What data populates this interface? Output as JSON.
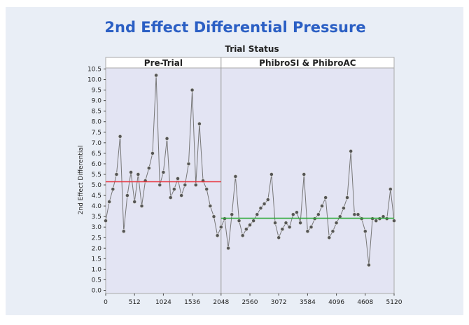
{
  "chart_data": {
    "type": "line",
    "title": "2nd Effect Differential Pressure",
    "group_title": "Trial Status",
    "y_label": "2nd Effect Differential",
    "phases": [
      {
        "name": "Pre-Trial",
        "start": 0,
        "end": 2048,
        "mean": 5.15,
        "color": "#e8323c"
      },
      {
        "name": "PhibroSI & PhibroAC",
        "start": 2048,
        "end": 5120,
        "mean": 3.42,
        "color": "#2eaa3a"
      }
    ],
    "x": [
      0,
      64,
      128,
      192,
      256,
      320,
      384,
      448,
      512,
      576,
      640,
      704,
      768,
      832,
      896,
      960,
      1024,
      1088,
      1152,
      1216,
      1280,
      1344,
      1408,
      1472,
      1536,
      1600,
      1664,
      1728,
      1792,
      1856,
      1920,
      1984,
      2048,
      2112,
      2176,
      2240,
      2304,
      2368,
      2432,
      2496,
      2560,
      2624,
      2688,
      2752,
      2816,
      2880,
      2944,
      3008,
      3072,
      3136,
      3200,
      3264,
      3328,
      3392,
      3456,
      3520,
      3584,
      3648,
      3712,
      3776,
      3840,
      3904,
      3968,
      4032,
      4096,
      4160,
      4224,
      4288,
      4352,
      4416,
      4480,
      4544,
      4608,
      4672,
      4736,
      4800,
      4864,
      4928,
      4992,
      5056,
      5120
    ],
    "values": [
      3.3,
      4.2,
      4.8,
      5.5,
      7.3,
      2.8,
      4.5,
      5.6,
      4.2,
      5.5,
      4.0,
      5.2,
      5.8,
      6.5,
      10.2,
      5.0,
      5.6,
      7.2,
      4.4,
      4.8,
      5.3,
      4.5,
      5.0,
      6.0,
      9.5,
      5.0,
      7.9,
      5.2,
      4.8,
      4.0,
      3.5,
      2.6,
      3.0,
      3.4,
      2.0,
      3.6,
      5.4,
      3.3,
      2.6,
      2.9,
      3.1,
      3.3,
      3.6,
      3.9,
      4.1,
      4.3,
      5.5,
      3.2,
      2.5,
      2.9,
      3.2,
      3.0,
      3.6,
      3.7,
      3.2,
      5.5,
      2.8,
      3.0,
      3.4,
      3.6,
      4.0,
      4.4,
      2.5,
      2.8,
      3.2,
      3.5,
      3.9,
      4.4,
      6.6,
      3.6,
      3.6,
      3.4,
      2.8,
      1.2,
      3.4,
      3.3,
      3.4,
      3.5,
      3.4,
      4.8,
      3.3
    ],
    "color": "#555555",
    "xlim": [
      0,
      5120
    ],
    "ylim": [
      -0.15,
      10.55
    ],
    "xticks": [
      0,
      512,
      1024,
      1536,
      2048,
      2560,
      3072,
      3584,
      4096,
      4608,
      5120
    ],
    "yticks": [
      {
        "value": 0,
        "label": "0.0"
      },
      0.5,
      {
        "value": 1,
        "label": "1.0"
      },
      1.5,
      {
        "value": 2,
        "label": "2.0"
      },
      2.5,
      {
        "value": 3,
        "label": "3.0"
      },
      3.5,
      {
        "value": 4,
        "label": "4.0"
      },
      4.5,
      {
        "value": 5,
        "label": "5.0"
      },
      5.5,
      {
        "value": 6,
        "label": "6.0"
      },
      6.5,
      {
        "value": 7,
        "label": "7.0"
      },
      7.5,
      {
        "value": 8,
        "label": "8.0"
      },
      8.5,
      {
        "value": 9,
        "label": "9.0"
      },
      9.5,
      {
        "value": 10,
        "label": "10.0"
      },
      10.5
    ]
  }
}
